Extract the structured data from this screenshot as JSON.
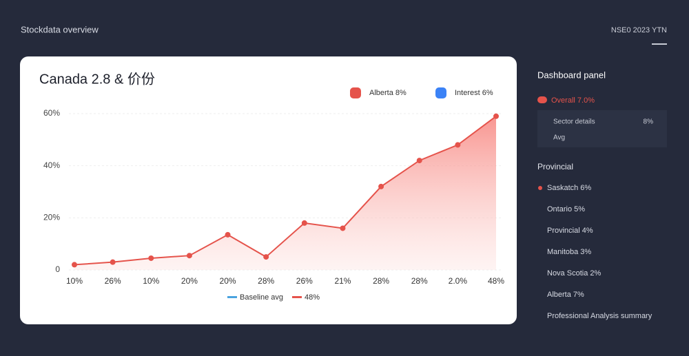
{
  "header": {
    "title": "Stockdata overview",
    "right_text": "NSE0 2023 YTN"
  },
  "chart_data": {
    "type": "line",
    "title": "Canada 2.8 & 价份",
    "categories": [
      "10%",
      "26%",
      "10%",
      "20%",
      "20%",
      "28%",
      "26%",
      "21%",
      "28%",
      "28%",
      "2.0%",
      "48%"
    ],
    "series": [
      {
        "name": "Alberta 8%",
        "color": "#e5534b",
        "values": [
          2,
          3,
          4.5,
          5.5,
          13.5,
          5,
          18,
          16,
          32,
          42,
          48,
          59
        ]
      }
    ],
    "legend_items": [
      {
        "name": "Alberta 8%",
        "color": "#e5534b"
      },
      {
        "name": "Interest 6%",
        "color": "#3b82f6"
      }
    ],
    "bottom_legend": [
      {
        "name": "Baseline avg",
        "color": "#4aa3df"
      },
      {
        "name": "48%",
        "color": "#e5534b"
      }
    ],
    "ylim": [
      0,
      60
    ],
    "yticks": [
      {
        "value": 0,
        "label": "0"
      },
      {
        "value": 20,
        "label": "20%"
      },
      {
        "value": 40,
        "label": "40%"
      },
      {
        "value": 60,
        "label": "60%"
      }
    ],
    "grid": true
  },
  "sidebar": {
    "title": "Dashboard panel",
    "highlight": "Overall 7.0%",
    "box": {
      "row1": "Sector details",
      "row1_value": "8%",
      "row2": "Avg"
    },
    "section": "Provincial",
    "items": [
      "Saskatch 6%",
      "Ontario 5%",
      "Provincial 4%",
      "Manitoba 3%",
      "Nova Scotia 2%",
      "Alberta 7%",
      "Professional Analysis summary"
    ]
  }
}
